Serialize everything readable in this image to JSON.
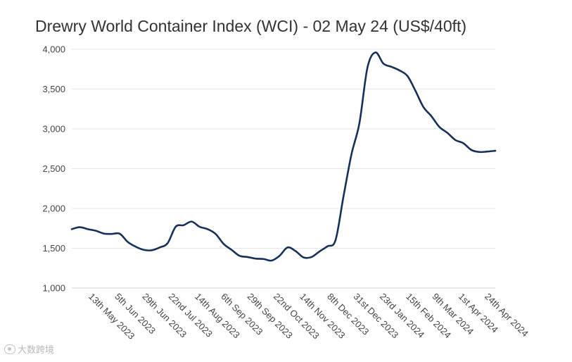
{
  "chart_data": {
    "type": "line",
    "title": "Drewry World Container Index (WCI) - 02 May 24 (US$/40ft)",
    "xlabel": "",
    "ylabel": "",
    "ylim": [
      1000,
      4000
    ],
    "yticks": [
      1000,
      1500,
      2000,
      2500,
      3000,
      3500,
      4000
    ],
    "ytick_labels": [
      "1,000",
      "1,500",
      "2,000",
      "2,500",
      "3,000",
      "3,500",
      "4,000"
    ],
    "x_range": [
      "2023-04-27",
      "2024-05-02"
    ],
    "xtick_dates": [
      "2023-05-13",
      "2023-06-05",
      "2023-06-29",
      "2023-07-22",
      "2023-08-14",
      "2023-09-06",
      "2023-09-29",
      "2023-10-22",
      "2023-11-14",
      "2023-12-08",
      "2023-12-31",
      "2024-01-23",
      "2024-02-15",
      "2024-03-09",
      "2024-04-01",
      "2024-04-24"
    ],
    "xtick_labels": [
      "13th May 2023",
      "5th Jun 2023",
      "29th Jun 2023",
      "22nd Jul 2023",
      "14th Aug 2023",
      "6th Sep 2023",
      "29th Sep 2023",
      "22nd Oct 2023",
      "14th Nov 2023",
      "8th Dec 2023",
      "31st Dec 2023",
      "23rd Jan 2024",
      "15th Feb 2024",
      "9th Mar 2024",
      "1st Apr 2024",
      "24th Apr 2024"
    ],
    "grid": true,
    "legend": "none",
    "series": [
      {
        "color": "#17305a",
        "x": [
          "2023-04-27",
          "2023-05-04",
          "2023-05-11",
          "2023-05-18",
          "2023-05-25",
          "2023-06-01",
          "2023-06-08",
          "2023-06-15",
          "2023-06-22",
          "2023-06-29",
          "2023-07-06",
          "2023-07-13",
          "2023-07-20",
          "2023-07-27",
          "2023-08-03",
          "2023-08-10",
          "2023-08-17",
          "2023-08-24",
          "2023-08-31",
          "2023-09-07",
          "2023-09-14",
          "2023-09-21",
          "2023-09-28",
          "2023-10-05",
          "2023-10-12",
          "2023-10-19",
          "2023-10-26",
          "2023-11-02",
          "2023-11-09",
          "2023-11-16",
          "2023-11-23",
          "2023-11-30",
          "2023-12-07",
          "2023-12-14",
          "2023-12-21",
          "2023-12-28",
          "2024-01-04",
          "2024-01-11",
          "2024-01-18",
          "2024-01-25",
          "2024-02-01",
          "2024-02-08",
          "2024-02-15",
          "2024-02-22",
          "2024-02-29",
          "2024-03-07",
          "2024-03-14",
          "2024-03-21",
          "2024-03-28",
          "2024-04-04",
          "2024-04-11",
          "2024-04-18",
          "2024-04-25",
          "2024-05-02"
        ],
        "values": [
          1740,
          1765,
          1740,
          1720,
          1685,
          1680,
          1683,
          1580,
          1520,
          1480,
          1475,
          1510,
          1565,
          1770,
          1790,
          1835,
          1770,
          1740,
          1680,
          1555,
          1480,
          1405,
          1390,
          1370,
          1365,
          1345,
          1405,
          1510,
          1465,
          1385,
          1390,
          1460,
          1525,
          1600,
          2150,
          2680,
          3075,
          3770,
          3960,
          3820,
          3780,
          3735,
          3665,
          3480,
          3275,
          3160,
          3025,
          2950,
          2860,
          2820,
          2735,
          2710,
          2715,
          2725
        ]
      }
    ]
  },
  "watermark": {
    "text": "大数跨境"
  }
}
